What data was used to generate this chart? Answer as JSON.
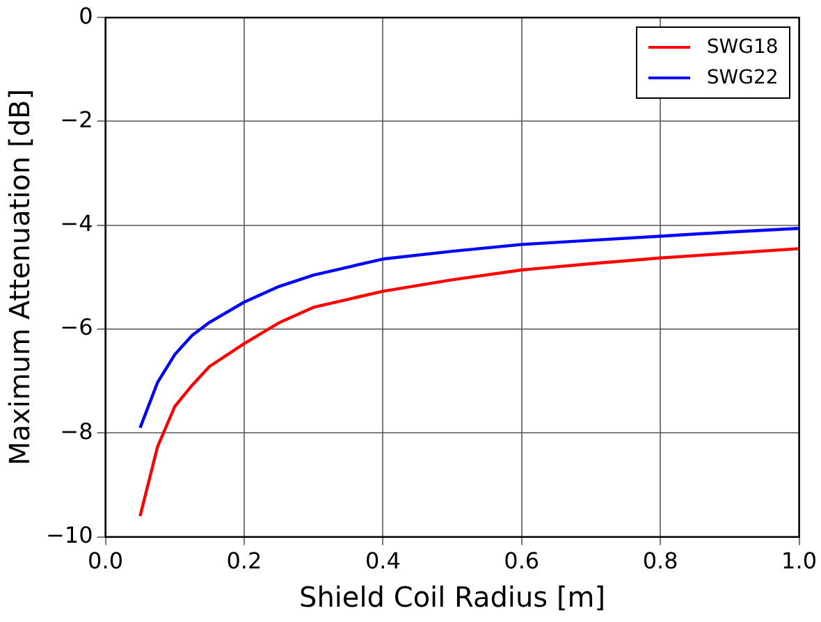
{
  "chart_data": {
    "type": "line",
    "xlabel": "Shield Coil Radius [m]",
    "ylabel": "Maximum Attenuation [dB]",
    "xlim": [
      0,
      1
    ],
    "xticks": [
      {
        "value": 0,
        "label": "0.0"
      },
      {
        "value": 0.2,
        "label": "0.2"
      },
      {
        "value": 0.4,
        "label": "0.4"
      },
      {
        "value": 0.6,
        "label": "0.6"
      },
      {
        "value": 0.8,
        "label": "0.8"
      },
      {
        "value": 1,
        "label": "1.0"
      }
    ],
    "ylim": [
      -10,
      0
    ],
    "yticks": [
      {
        "value": -10,
        "label": "−10"
      },
      {
        "value": -8,
        "label": "−8"
      },
      {
        "value": -6,
        "label": "−6"
      },
      {
        "value": -4,
        "label": "−4"
      },
      {
        "value": -2,
        "label": "−2"
      },
      0
    ],
    "grid": true,
    "legend": "top right",
    "marker": "none",
    "line_style": "solid",
    "series": [
      {
        "name": "SWG18",
        "color": "#ff0000",
        "x": [
          0.05,
          0.075,
          0.1,
          0.125,
          0.15,
          0.2,
          0.25,
          0.3,
          0.4,
          0.5,
          0.6,
          0.7,
          0.8,
          0.9,
          1.0
        ],
        "values": [
          -9.6,
          -8.27,
          -7.49,
          -7.08,
          -6.72,
          -6.28,
          -5.88,
          -5.58,
          -5.27,
          -5.05,
          -4.86,
          -4.74,
          -4.63,
          -4.54,
          -4.45
        ]
      },
      {
        "name": "SWG22",
        "color": "#0000ff",
        "x": [
          0.05,
          0.075,
          0.1,
          0.125,
          0.15,
          0.2,
          0.25,
          0.3,
          0.4,
          0.5,
          0.6,
          0.7,
          0.8,
          0.9,
          1.0
        ],
        "values": [
          -7.9,
          -7.03,
          -6.49,
          -6.12,
          -5.87,
          -5.48,
          -5.18,
          -4.96,
          -4.65,
          -4.5,
          -4.37,
          -4.29,
          -4.21,
          -4.13,
          -4.06
        ]
      }
    ]
  }
}
